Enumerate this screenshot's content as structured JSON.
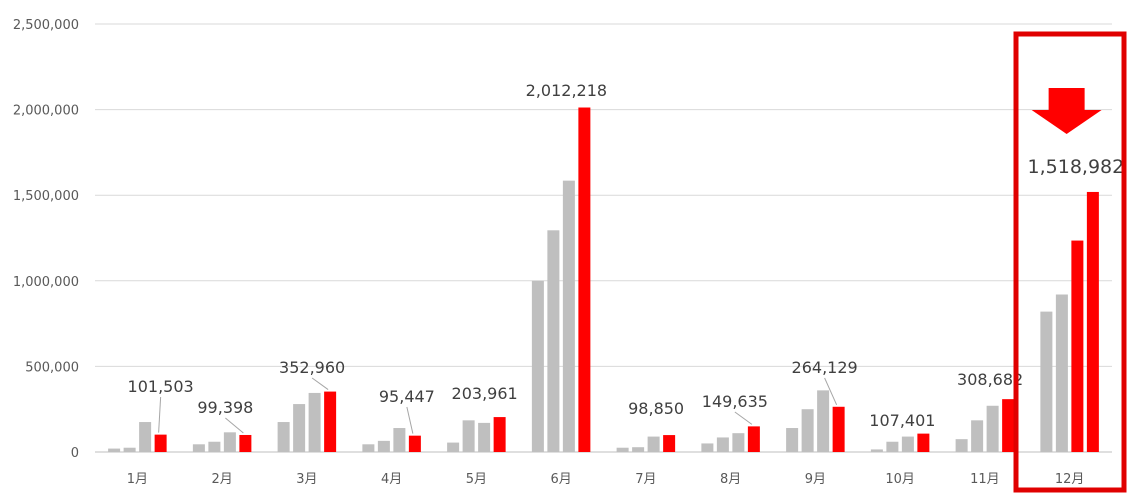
{
  "chart_data": {
    "type": "bar",
    "title": "",
    "xlabel": "",
    "ylabel": "",
    "ylim": [
      0,
      2500000
    ],
    "yticks": [
      0,
      500000,
      1000000,
      1500000,
      2000000,
      2500000
    ],
    "ytick_labels": [
      "0",
      "500,000",
      "1,000,000",
      "1,500,000",
      "2,000,000",
      "2,500,000"
    ],
    "grid": true,
    "legend": "none",
    "categories": [
      "1月",
      "2月",
      "3月",
      "4月",
      "5月",
      "6月",
      "7月",
      "8月",
      "9月",
      "10月",
      "11月",
      "12月"
    ],
    "series": [
      {
        "color": "#bfbfbf",
        "values": [
          20000,
          45000,
          175000,
          45000,
          55000,
          1000000,
          25000,
          50000,
          140000,
          15000,
          75000,
          null
        ]
      },
      {
        "color": "#bfbfbf",
        "values": [
          25000,
          60000,
          280000,
          65000,
          185000,
          1295000,
          28000,
          85000,
          250000,
          60000,
          185000,
          820000
        ]
      },
      {
        "color": "#bfbfbf",
        "values": [
          175000,
          115000,
          345000,
          140000,
          170000,
          1585000,
          90000,
          110000,
          360000,
          90000,
          270000,
          920000
        ]
      },
      {
        "color": "#ff0000",
        "values": [
          101503,
          99398,
          352960,
          95447,
          203961,
          2012218,
          98850,
          149635,
          264129,
          107401,
          308682,
          1235000
        ]
      },
      {
        "color": "#ff0000",
        "values": [
          null,
          null,
          null,
          null,
          null,
          null,
          null,
          null,
          null,
          null,
          null,
          1518982
        ]
      }
    ],
    "data_labels": [
      "101,503",
      "99,398",
      "352,960",
      "95,447",
      "203,961",
      "2,012,218",
      "98,850",
      "149,635",
      "264,129",
      "107,401",
      "308,682",
      "1,518,982"
    ],
    "highlight": {
      "category": "12月",
      "border_color": "#e00000",
      "arrow": "down-arrow-icon"
    }
  }
}
